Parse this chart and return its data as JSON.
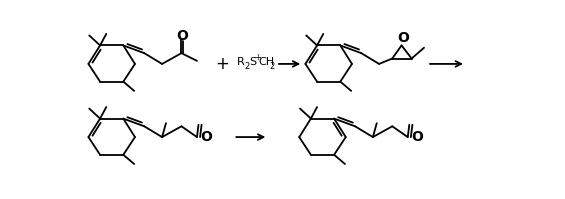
{
  "bg_color": "#ffffff",
  "line_color": "#000000",
  "lw": 1.3,
  "fig_width": 5.65,
  "fig_height": 1.99,
  "dpi": 100,
  "xlim": [
    0,
    565
  ],
  "ylim": [
    0,
    199
  ]
}
